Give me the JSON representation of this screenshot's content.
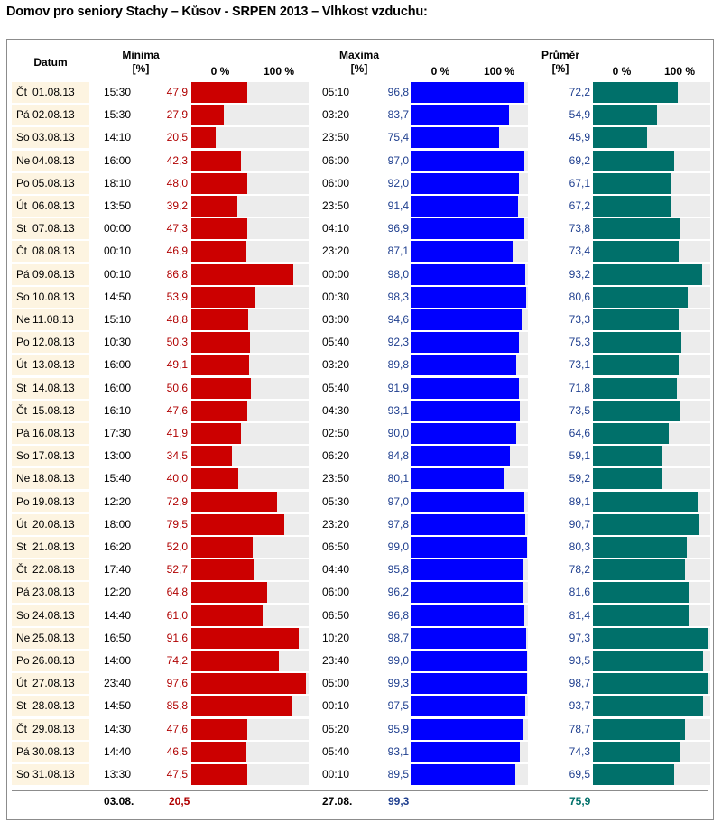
{
  "title": "Domov pro seniory Stachy – Kůsov - SRPEN 2013 – Vlhkost vzduchu:",
  "headers": {
    "datum": "Datum",
    "minima": "Minima",
    "maxima": "Maxima",
    "prumer": "Průměr",
    "unit": "[%]",
    "zero": "0 %",
    "hundred": "100 %"
  },
  "colors": {
    "min": "#cc0000",
    "max": "#0000ff",
    "avg": "#00706a",
    "date_bg": "#fdf4e1",
    "track": "#ececec"
  },
  "chart_data": {
    "type": "bar",
    "axis_range": [
      0,
      100
    ],
    "series": [
      {
        "name": "Minima",
        "values": [
          47.9,
          27.9,
          20.5,
          42.3,
          48.0,
          39.2,
          47.3,
          46.9,
          86.8,
          53.9,
          48.8,
          50.3,
          49.1,
          50.6,
          47.6,
          41.9,
          34.5,
          40.0,
          72.9,
          79.5,
          52.0,
          52.7,
          64.8,
          61.0,
          91.6,
          74.2,
          97.6,
          85.8,
          47.6,
          46.5,
          47.5
        ]
      },
      {
        "name": "Maxima",
        "values": [
          96.8,
          83.7,
          75.4,
          97.0,
          92.0,
          91.4,
          96.9,
          87.1,
          98.0,
          98.3,
          94.6,
          92.3,
          89.8,
          91.9,
          93.1,
          90.0,
          84.8,
          80.1,
          97.0,
          97.8,
          99.0,
          95.8,
          96.2,
          96.8,
          98.7,
          99.0,
          99.3,
          97.5,
          95.9,
          93.1,
          89.5
        ]
      },
      {
        "name": "Průměr",
        "values": [
          72.2,
          54.9,
          45.9,
          69.2,
          67.1,
          67.2,
          73.8,
          73.4,
          93.2,
          80.6,
          73.3,
          75.3,
          73.1,
          71.8,
          73.5,
          64.6,
          59.1,
          59.2,
          89.1,
          90.7,
          80.3,
          78.2,
          81.6,
          81.4,
          97.3,
          93.5,
          98.7,
          93.7,
          78.7,
          74.3,
          69.5
        ]
      }
    ],
    "rows": [
      {
        "day": "Čt",
        "date": "01.08.13",
        "min_time": "15:30",
        "min": "47,9",
        "max_time": "05:10",
        "max": "96,8",
        "avg": "72,2"
      },
      {
        "day": "Pá",
        "date": "02.08.13",
        "min_time": "15:30",
        "min": "27,9",
        "max_time": "03:20",
        "max": "83,7",
        "avg": "54,9"
      },
      {
        "day": "So",
        "date": "03.08.13",
        "min_time": "14:10",
        "min": "20,5",
        "max_time": "23:50",
        "max": "75,4",
        "avg": "45,9"
      },
      {
        "day": "Ne",
        "date": "04.08.13",
        "min_time": "16:00",
        "min": "42,3",
        "max_time": "06:00",
        "max": "97,0",
        "avg": "69,2"
      },
      {
        "day": "Po",
        "date": "05.08.13",
        "min_time": "18:10",
        "min": "48,0",
        "max_time": "06:00",
        "max": "92,0",
        "avg": "67,1"
      },
      {
        "day": "Út",
        "date": "06.08.13",
        "min_time": "13:50",
        "min": "39,2",
        "max_time": "23:50",
        "max": "91,4",
        "avg": "67,2"
      },
      {
        "day": "St",
        "date": "07.08.13",
        "min_time": "00:00",
        "min": "47,3",
        "max_time": "04:10",
        "max": "96,9",
        "avg": "73,8"
      },
      {
        "day": "Čt",
        "date": "08.08.13",
        "min_time": "00:10",
        "min": "46,9",
        "max_time": "23:20",
        "max": "87,1",
        "avg": "73,4"
      },
      {
        "day": "Pá",
        "date": "09.08.13",
        "min_time": "00:10",
        "min": "86,8",
        "max_time": "00:00",
        "max": "98,0",
        "avg": "93,2"
      },
      {
        "day": "So",
        "date": "10.08.13",
        "min_time": "14:50",
        "min": "53,9",
        "max_time": "00:30",
        "max": "98,3",
        "avg": "80,6"
      },
      {
        "day": "Ne",
        "date": "11.08.13",
        "min_time": "15:10",
        "min": "48,8",
        "max_time": "03:00",
        "max": "94,6",
        "avg": "73,3"
      },
      {
        "day": "Po",
        "date": "12.08.13",
        "min_time": "10:30",
        "min": "50,3",
        "max_time": "05:40",
        "max": "92,3",
        "avg": "75,3"
      },
      {
        "day": "Út",
        "date": "13.08.13",
        "min_time": "16:00",
        "min": "49,1",
        "max_time": "03:20",
        "max": "89,8",
        "avg": "73,1"
      },
      {
        "day": "St",
        "date": "14.08.13",
        "min_time": "16:00",
        "min": "50,6",
        "max_time": "05:40",
        "max": "91,9",
        "avg": "71,8"
      },
      {
        "day": "Čt",
        "date": "15.08.13",
        "min_time": "16:10",
        "min": "47,6",
        "max_time": "04:30",
        "max": "93,1",
        "avg": "73,5"
      },
      {
        "day": "Pá",
        "date": "16.08.13",
        "min_time": "17:30",
        "min": "41,9",
        "max_time": "02:50",
        "max": "90,0",
        "avg": "64,6"
      },
      {
        "day": "So",
        "date": "17.08.13",
        "min_time": "13:00",
        "min": "34,5",
        "max_time": "06:20",
        "max": "84,8",
        "avg": "59,1"
      },
      {
        "day": "Ne",
        "date": "18.08.13",
        "min_time": "15:40",
        "min": "40,0",
        "max_time": "23:50",
        "max": "80,1",
        "avg": "59,2"
      },
      {
        "day": "Po",
        "date": "19.08.13",
        "min_time": "12:20",
        "min": "72,9",
        "max_time": "05:30",
        "max": "97,0",
        "avg": "89,1"
      },
      {
        "day": "Út",
        "date": "20.08.13",
        "min_time": "18:00",
        "min": "79,5",
        "max_time": "23:20",
        "max": "97,8",
        "avg": "90,7"
      },
      {
        "day": "St",
        "date": "21.08.13",
        "min_time": "16:20",
        "min": "52,0",
        "max_time": "06:50",
        "max": "99,0",
        "avg": "80,3"
      },
      {
        "day": "Čt",
        "date": "22.08.13",
        "min_time": "17:40",
        "min": "52,7",
        "max_time": "04:40",
        "max": "95,8",
        "avg": "78,2"
      },
      {
        "day": "Pá",
        "date": "23.08.13",
        "min_time": "12:20",
        "min": "64,8",
        "max_time": "06:00",
        "max": "96,2",
        "avg": "81,6"
      },
      {
        "day": "So",
        "date": "24.08.13",
        "min_time": "14:40",
        "min": "61,0",
        "max_time": "06:50",
        "max": "96,8",
        "avg": "81,4"
      },
      {
        "day": "Ne",
        "date": "25.08.13",
        "min_time": "16:50",
        "min": "91,6",
        "max_time": "10:20",
        "max": "98,7",
        "avg": "97,3"
      },
      {
        "day": "Po",
        "date": "26.08.13",
        "min_time": "14:00",
        "min": "74,2",
        "max_time": "23:40",
        "max": "99,0",
        "avg": "93,5"
      },
      {
        "day": "Út",
        "date": "27.08.13",
        "min_time": "23:40",
        "min": "97,6",
        "max_time": "05:00",
        "max": "99,3",
        "avg": "98,7"
      },
      {
        "day": "St",
        "date": "28.08.13",
        "min_time": "14:50",
        "min": "85,8",
        "max_time": "00:10",
        "max": "97,5",
        "avg": "93,7"
      },
      {
        "day": "Čt",
        "date": "29.08.13",
        "min_time": "14:30",
        "min": "47,6",
        "max_time": "05:20",
        "max": "95,9",
        "avg": "78,7"
      },
      {
        "day": "Pá",
        "date": "30.08.13",
        "min_time": "14:40",
        "min": "46,5",
        "max_time": "05:40",
        "max": "93,1",
        "avg": "74,3"
      },
      {
        "day": "So",
        "date": "31.08.13",
        "min_time": "13:30",
        "min": "47,5",
        "max_time": "00:10",
        "max": "89,5",
        "avg": "69,5"
      }
    ],
    "summary": {
      "min_date": "03.08.",
      "min_value": "20,5",
      "max_date": "27.08.",
      "max_value": "99,3",
      "avg_value": "75,9"
    }
  }
}
